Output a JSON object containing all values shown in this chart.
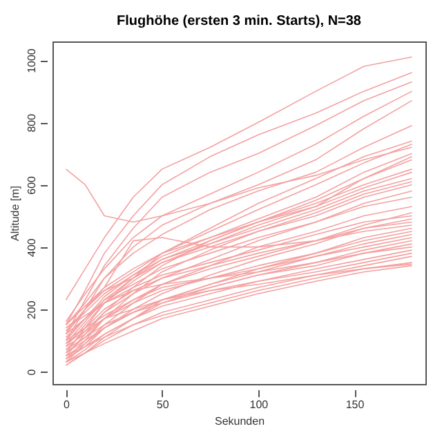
{
  "chart_data": {
    "type": "line",
    "title": "Flughöhe (ersten 3 min. Starts), N=38",
    "xlabel": "Sekunden",
    "ylabel": "Altitude [m]",
    "color": "#f4a0a0",
    "xlim": [
      -7,
      187
    ],
    "ylim": [
      -40,
      1060
    ],
    "xticks": [
      0,
      50,
      100,
      150
    ],
    "yticks": [
      0,
      200,
      400,
      600,
      800,
      1000
    ],
    "grid": false,
    "legend": false,
    "x": [
      0,
      10,
      20,
      35,
      50,
      75,
      100,
      130,
      155,
      180
    ],
    "series": [
      {
        "values": [
          230,
          330,
          430,
          560,
          650,
          720,
          800,
          900,
          980,
          1010
        ]
      },
      {
        "values": [
          150,
          260,
          380,
          500,
          600,
          690,
          760,
          830,
          900,
          960
        ]
      },
      {
        "values": [
          120,
          230,
          340,
          460,
          560,
          640,
          700,
          790,
          870,
          930
        ]
      },
      {
        "values": [
          160,
          250,
          330,
          430,
          500,
          570,
          640,
          730,
          820,
          900
        ]
      },
      {
        "values": [
          100,
          200,
          300,
          400,
          470,
          540,
          600,
          680,
          780,
          870
        ]
      },
      {
        "values": [
          150,
          220,
          300,
          380,
          440,
          520,
          580,
          640,
          720,
          790
        ]
      },
      {
        "values": [
          60,
          140,
          220,
          300,
          380,
          460,
          540,
          620,
          690,
          740
        ]
      },
      {
        "values": [
          120,
          200,
          260,
          320,
          380,
          450,
          520,
          600,
          670,
          730
        ]
      },
      {
        "values": [
          650,
          600,
          500,
          480,
          500,
          540,
          590,
          630,
          680,
          720
        ]
      },
      {
        "values": [
          100,
          170,
          240,
          310,
          370,
          430,
          490,
          560,
          640,
          700
        ]
      },
      {
        "values": [
          80,
          150,
          220,
          290,
          350,
          410,
          470,
          530,
          620,
          690
        ]
      },
      {
        "values": [
          140,
          190,
          250,
          310,
          360,
          420,
          480,
          550,
          620,
          680
        ]
      },
      {
        "values": [
          50,
          120,
          190,
          270,
          340,
          420,
          480,
          540,
          600,
          650
        ]
      },
      {
        "values": [
          130,
          200,
          270,
          330,
          380,
          430,
          480,
          530,
          590,
          640
        ]
      },
      {
        "values": [
          90,
          160,
          230,
          300,
          360,
          410,
          460,
          520,
          580,
          620
        ]
      },
      {
        "values": [
          40,
          100,
          170,
          250,
          320,
          390,
          450,
          510,
          570,
          610
        ]
      },
      {
        "values": [
          150,
          210,
          260,
          300,
          350,
          400,
          450,
          500,
          560,
          600
        ]
      },
      {
        "values": [
          70,
          130,
          190,
          250,
          300,
          360,
          420,
          480,
          540,
          580
        ]
      },
      {
        "values": [
          110,
          170,
          230,
          280,
          330,
          380,
          430,
          480,
          530,
          560
        ]
      },
      {
        "values": [
          30,
          90,
          150,
          220,
          280,
          340,
          400,
          450,
          500,
          530
        ]
      },
      {
        "values": [
          60,
          110,
          170,
          230,
          280,
          330,
          370,
          420,
          470,
          510
        ]
      },
      {
        "values": [
          120,
          170,
          220,
          270,
          310,
          350,
          390,
          440,
          480,
          500
        ]
      },
      {
        "values": [
          40,
          80,
          140,
          200,
          250,
          310,
          360,
          410,
          460,
          490
        ]
      },
      {
        "values": [
          90,
          140,
          200,
          260,
          300,
          340,
          380,
          420,
          460,
          480
        ]
      },
      {
        "values": [
          150,
          210,
          270,
          420,
          430,
          400,
          400,
          420,
          450,
          470
        ]
      },
      {
        "values": [
          20,
          60,
          110,
          170,
          230,
          280,
          330,
          380,
          430,
          460
        ]
      },
      {
        "values": [
          80,
          120,
          170,
          220,
          260,
          300,
          340,
          380,
          420,
          450
        ]
      },
      {
        "values": [
          50,
          90,
          140,
          190,
          230,
          280,
          320,
          370,
          410,
          440
        ]
      },
      {
        "values": [
          100,
          140,
          180,
          230,
          270,
          300,
          330,
          370,
          400,
          430
        ]
      },
      {
        "values": [
          30,
          70,
          120,
          170,
          220,
          270,
          310,
          350,
          390,
          420
        ]
      },
      {
        "values": [
          60,
          100,
          140,
          190,
          230,
          270,
          310,
          340,
          380,
          410
        ]
      },
      {
        "values": [
          140,
          180,
          220,
          260,
          280,
          300,
          320,
          350,
          380,
          400
        ]
      },
      {
        "values": [
          40,
          80,
          120,
          170,
          210,
          250,
          290,
          330,
          360,
          390
        ]
      },
      {
        "values": [
          70,
          110,
          150,
          190,
          220,
          260,
          290,
          320,
          350,
          380
        ]
      },
      {
        "values": [
          20,
          60,
          100,
          150,
          190,
          230,
          270,
          310,
          340,
          370
        ]
      },
      {
        "values": [
          50,
          80,
          110,
          150,
          180,
          220,
          260,
          300,
          330,
          350
        ]
      },
      {
        "values": [
          30,
          60,
          90,
          130,
          170,
          210,
          250,
          290,
          320,
          340
        ]
      },
      {
        "values": [
          90,
          130,
          170,
          200,
          230,
          260,
          280,
          310,
          330,
          345
        ]
      }
    ]
  }
}
